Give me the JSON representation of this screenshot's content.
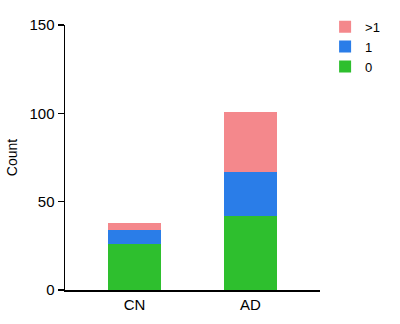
{
  "chart_data": {
    "type": "bar",
    "stacked": true,
    "categories": [
      "CN",
      "AD"
    ],
    "series": [
      {
        "name": "0",
        "color": "#2ebf2e",
        "values": [
          26,
          42
        ]
      },
      {
        "name": "1",
        "color": "#2a7de8",
        "values": [
          8,
          25
        ]
      },
      {
        "name": ">1",
        "color": "#f4888c",
        "values": [
          4,
          34
        ]
      }
    ],
    "y_label": "Count",
    "ylim": [
      0,
      150
    ],
    "yticks": [
      0,
      50,
      100,
      150
    ],
    "grid": false,
    "legend": "top right"
  }
}
